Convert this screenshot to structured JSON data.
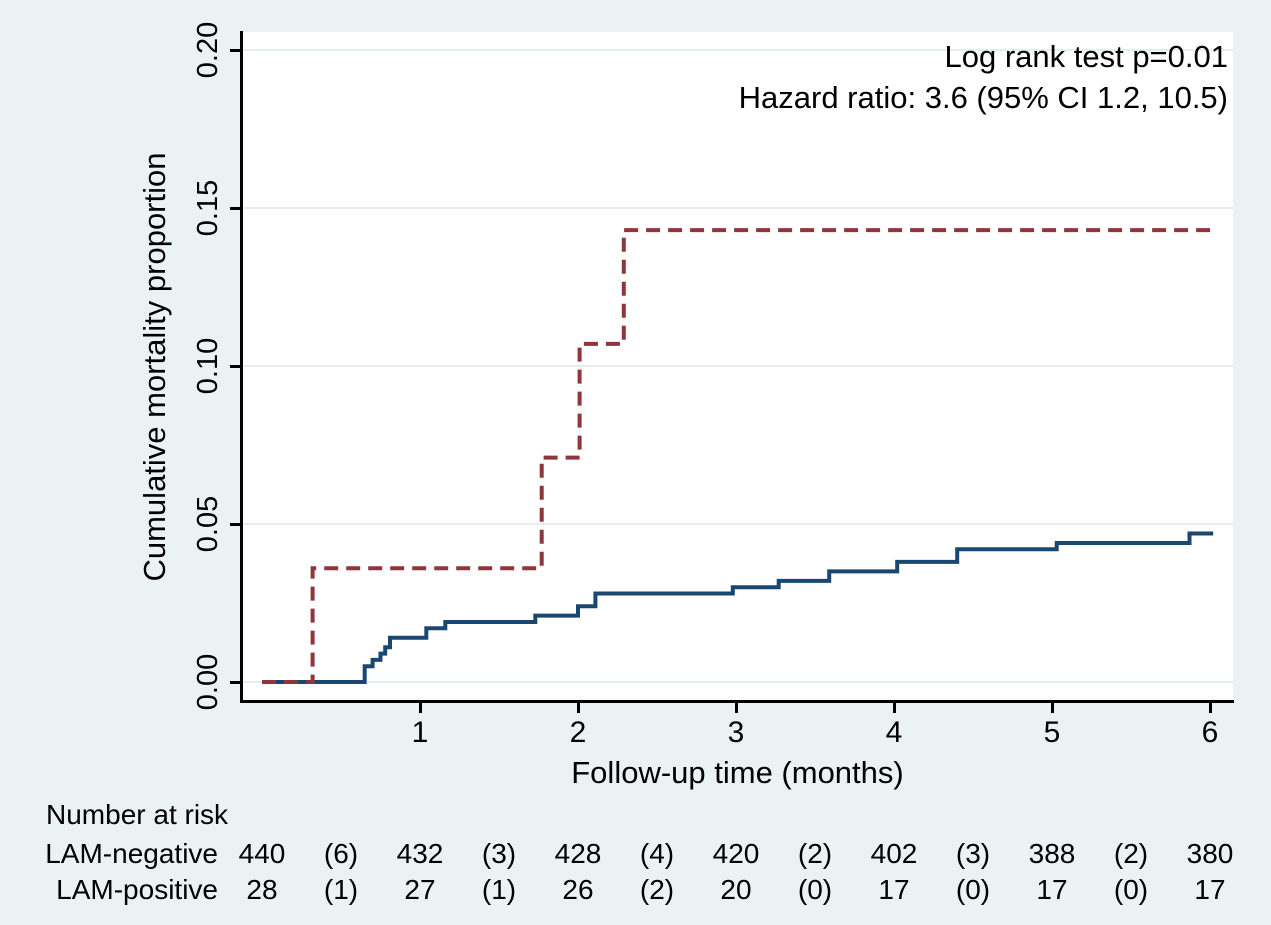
{
  "figure": {
    "background_color": "#EAF2F3",
    "plot_background_color": "#FFFFFF",
    "grid_color": "#E4EDF0",
    "axis_color": "#000000",
    "text_color": "#000000"
  },
  "annotation": {
    "line1": "Log rank test p=0.01",
    "line2": "Hazard ratio: 3.6 (95% CI 1.2, 10.5)"
  },
  "chart_data": {
    "type": "line",
    "subtype": "kaplan-meier-step",
    "title": "",
    "xlabel": "Follow-up time (months)",
    "ylabel": "Cumulative mortality proportion",
    "xlim": [
      0,
      6.05
    ],
    "ylim": [
      0,
      0.2
    ],
    "x_ticks": [
      1,
      2,
      3,
      4,
      5,
      6
    ],
    "y_ticks": [
      0.0,
      0.05,
      0.1,
      0.15,
      0.2
    ],
    "grid": "horizontal",
    "legend_position": "none",
    "series": [
      {
        "name": "LAM-negative",
        "color": "#1A476F",
        "line_style": "solid",
        "points": [
          [
            0,
            0
          ],
          [
            0.65,
            0.005
          ],
          [
            0.7,
            0.007
          ],
          [
            0.75,
            0.009
          ],
          [
            0.78,
            0.011
          ],
          [
            0.81,
            0.014
          ],
          [
            1.04,
            0.017
          ],
          [
            1.16,
            0.019
          ],
          [
            1.73,
            0.021
          ],
          [
            2.0,
            0.024
          ],
          [
            2.11,
            0.028
          ],
          [
            2.98,
            0.03
          ],
          [
            3.27,
            0.032
          ],
          [
            3.59,
            0.035
          ],
          [
            4.02,
            0.038
          ],
          [
            4.4,
            0.042
          ],
          [
            5.03,
            0.044
          ],
          [
            5.87,
            0.047
          ]
        ],
        "end_x": 6.02
      },
      {
        "name": "LAM-positive",
        "color": "#90353B",
        "line_style": "dashed",
        "points": [
          [
            0,
            0
          ],
          [
            0.32,
            0.036
          ],
          [
            1.77,
            0.071
          ],
          [
            2.01,
            0.107
          ],
          [
            2.29,
            0.143
          ]
        ],
        "end_x": 6.01
      }
    ]
  },
  "risk_table": {
    "title": "Number at risk",
    "rows": [
      {
        "label": "LAM-negative",
        "values": [
          "440",
          "(6)",
          "432",
          "(3)",
          "428",
          "(4)",
          "420",
          "(2)",
          "402",
          "(3)",
          "388",
          "(2)",
          "380"
        ]
      },
      {
        "label": "LAM-positive",
        "values": [
          "28",
          "(1)",
          "27",
          "(1)",
          "26",
          "(2)",
          "20",
          "(0)",
          "17",
          "(0)",
          "17",
          "(0)",
          "17"
        ]
      }
    ]
  }
}
